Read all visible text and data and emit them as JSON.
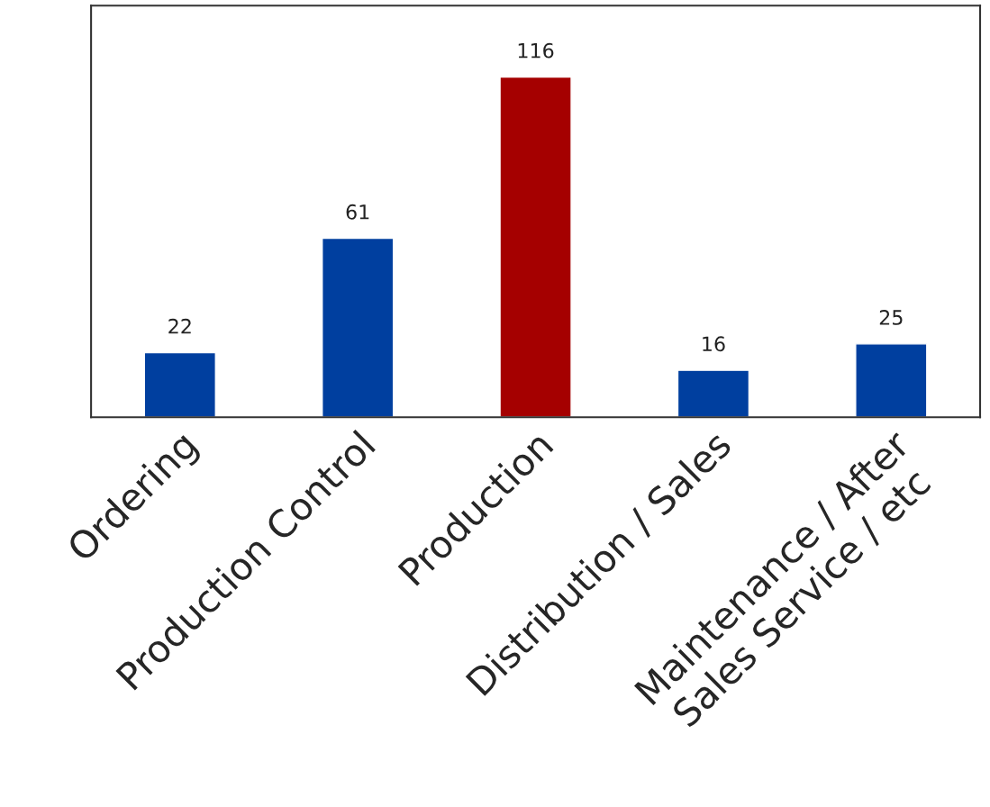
{
  "chart_data": {
    "type": "bar",
    "categories": [
      "Ordering",
      "Production Control",
      "Production",
      "Distribution / Sales",
      "Maintenance / After\nSales Service / etc"
    ],
    "values": [
      22,
      61,
      116,
      16,
      25
    ],
    "colors": [
      "#003f9f",
      "#003f9f",
      "#a50000",
      "#003f9f",
      "#003f9f"
    ],
    "data_labels": true,
    "grid": false,
    "legend": false,
    "tick_labels": "x"
  }
}
